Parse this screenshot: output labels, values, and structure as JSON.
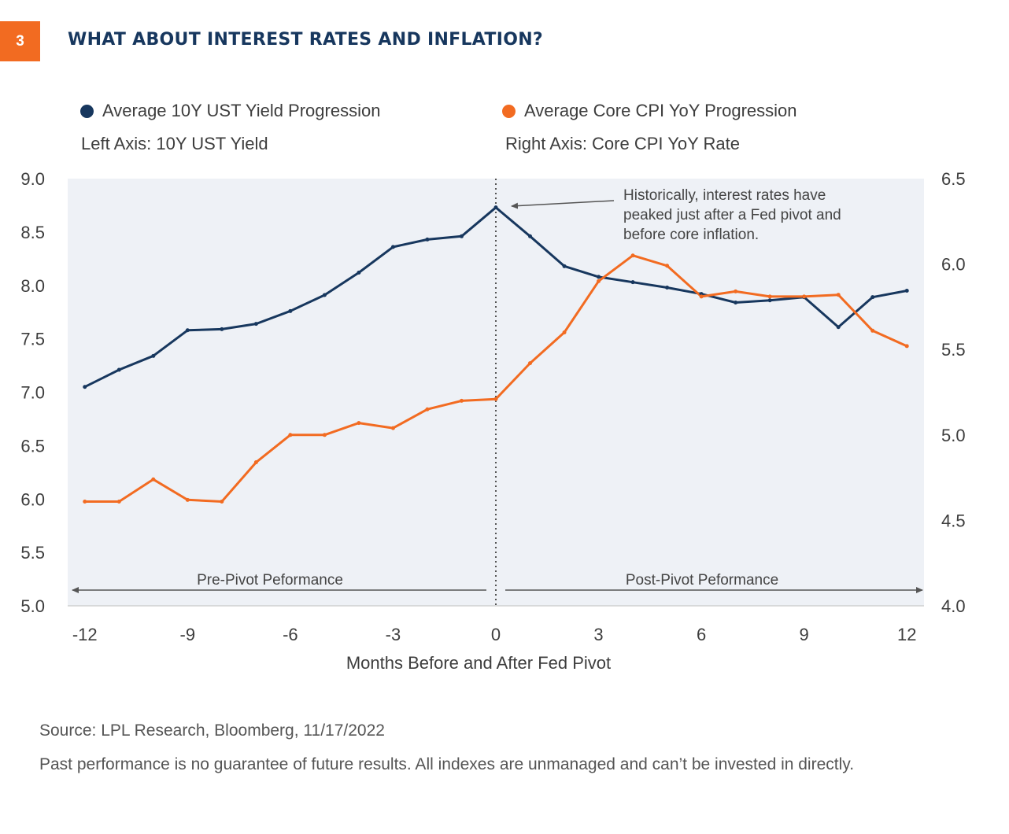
{
  "header": {
    "badge": "3",
    "title": "WHAT ABOUT INTEREST RATES AND INFLATION?"
  },
  "legend": {
    "series1": {
      "label": "Average 10Y UST Yield Progression",
      "color": "#17375e",
      "icon": "circle-dot"
    },
    "series2": {
      "label": "Average Core CPI YoY Progression",
      "color": "#f26b21",
      "icon": "circle-dot"
    },
    "left_axis_note": "Left Axis: 10Y UST Yield",
    "right_axis_note": "Right Axis: Core CPI YoY Rate"
  },
  "chart_data": {
    "type": "line",
    "title": "",
    "xlabel": "Months Before and After Fed Pivot",
    "x": [
      -12,
      -11,
      -10,
      -9,
      -8,
      -7,
      -6,
      -5,
      -4,
      -3,
      -2,
      -1,
      0,
      1,
      2,
      3,
      4,
      5,
      6,
      7,
      8,
      9,
      10,
      11,
      12
    ],
    "xticks": [
      -12,
      -9,
      -6,
      -3,
      0,
      3,
      6,
      9,
      12
    ],
    "xtick_labels": [
      "-12",
      "-9",
      "-6",
      "-3",
      "0",
      "3",
      "6",
      "9",
      "12"
    ],
    "xlim": [
      -12.5,
      12.5
    ],
    "y_left": {
      "label": "10Y UST Yield",
      "lim": [
        5.0,
        9.0
      ],
      "ticks": [
        "5.0",
        "5.5",
        "6.0",
        "6.5",
        "7.0",
        "7.5",
        "8.0",
        "8.5",
        "9.0"
      ]
    },
    "y_right": {
      "label": "Core CPI YoY Rate",
      "lim": [
        4.0,
        6.5
      ],
      "ticks": [
        "4.0",
        "4.5",
        "5.0",
        "5.5",
        "6.0",
        "6.5"
      ]
    },
    "series": [
      {
        "name": "Average 10Y UST Yield Progression",
        "axis": "left",
        "color": "#17375e",
        "values": [
          7.05,
          7.21,
          7.34,
          7.58,
          7.59,
          7.64,
          7.76,
          7.91,
          8.12,
          8.36,
          8.43,
          8.46,
          8.73,
          8.46,
          8.18,
          8.08,
          8.03,
          7.98,
          7.92,
          7.84,
          7.86,
          7.89,
          7.61,
          7.89,
          7.95
        ]
      },
      {
        "name": "Average Core CPI YoY Progression",
        "axis": "right",
        "color": "#f26b21",
        "values": [
          4.61,
          4.61,
          4.74,
          4.62,
          4.61,
          4.84,
          5.0,
          5.0,
          5.07,
          5.04,
          5.15,
          5.2,
          5.21,
          5.42,
          5.6,
          5.9,
          6.05,
          5.99,
          5.81,
          5.84,
          5.81,
          5.81,
          5.82,
          5.61,
          5.52
        ]
      }
    ],
    "annotations": {
      "callout": [
        "Historically, interest rates have",
        "peaked just after a Fed pivot and",
        "before core inflation."
      ],
      "pre_pivot": "Pre-Pivot Peformance",
      "post_pivot": "Post-Pivot Peformance"
    },
    "grid": false
  },
  "footer": {
    "source": "Source: LPL Research, Bloomberg,  11/17/2022",
    "disclaimer": "Past performance is no guarantee of future results. All indexes are unmanaged and can’t be invested in directly."
  }
}
